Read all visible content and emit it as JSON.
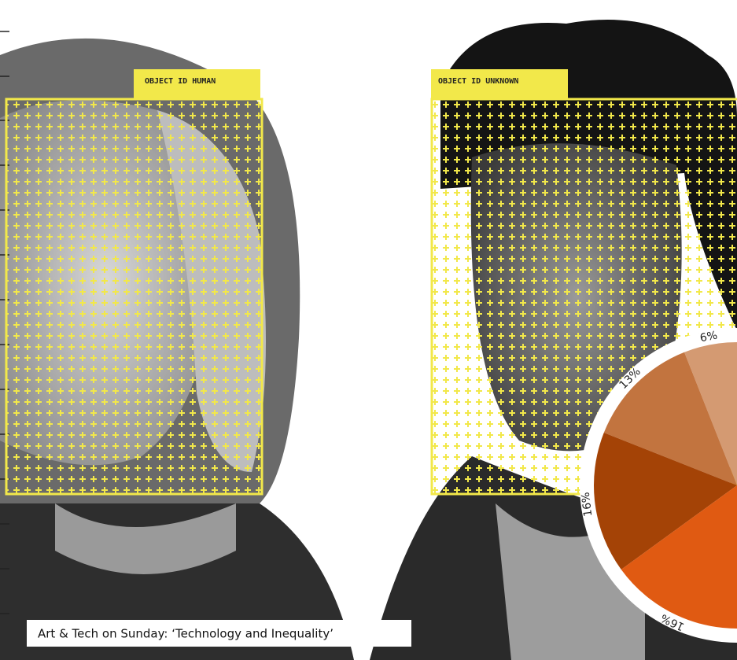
{
  "overlays": [
    {
      "label": "OBJECT ID HUMAN"
    },
    {
      "label": "OBJECT ID UNKNOWN"
    }
  ],
  "caption": "Art & Tech on Sunday: ‘Technology and Inequality’",
  "pie": {
    "slices": [
      {
        "value": 6,
        "label": "6%",
        "color": "#d49a72"
      },
      {
        "value": 13,
        "label": "13%",
        "color": "#c2743f"
      },
      {
        "value": 16,
        "label": "16%",
        "color": "#a44306"
      },
      {
        "value": 16,
        "label": "16%",
        "color": "#e05a12"
      }
    ]
  }
}
